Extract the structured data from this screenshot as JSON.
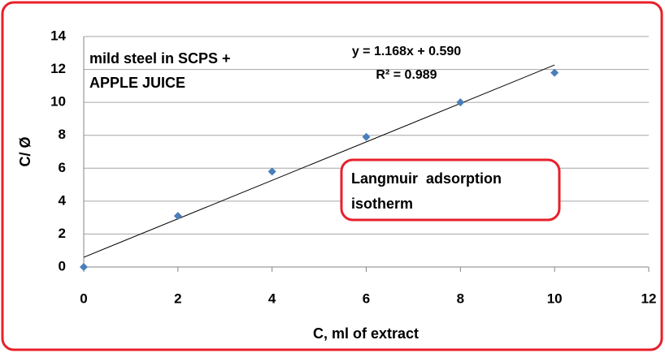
{
  "chart_data": {
    "type": "scatter",
    "x": [
      0,
      2,
      4,
      6,
      8,
      10
    ],
    "series": [
      {
        "name": "C/ Ø",
        "color": "#4a7ebb",
        "values": [
          0,
          3.1,
          5.8,
          7.9,
          10,
          11.8
        ]
      }
    ],
    "x_label": "C, ml of extract",
    "y_label": "C/ Ø",
    "xlim": [
      0,
      12
    ],
    "xticks": [
      0,
      2,
      4,
      6,
      8,
      10,
      12
    ],
    "ylim": [
      0,
      14
    ],
    "yticks": [
      0,
      2,
      4,
      6,
      8,
      10,
      12,
      14
    ],
    "grid": true,
    "annotation": [
      "mild steel in SCPS +",
      "APPLE JUICE"
    ],
    "callout": [
      "Langmuir  adsorption",
      "isotherm"
    ],
    "trendline": {
      "equation": "y = 1.168x + 0.590",
      "r_squared": "R² = 0.989",
      "slope": 1.168,
      "intercept": 0.59
    }
  }
}
